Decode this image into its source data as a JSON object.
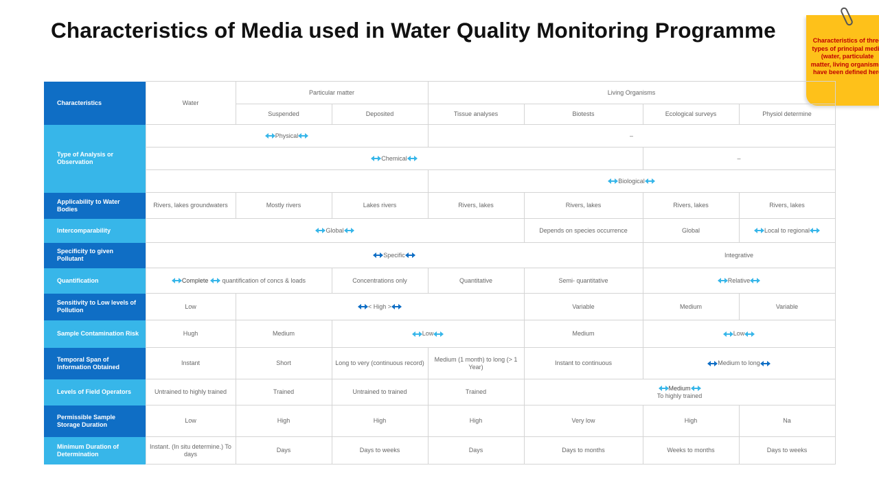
{
  "title": "Characteristics of Media used in Water Quality Monitoring Programme",
  "note": "Characteristics of three\ntypes of principal media\n(water, particulate\nmatter, living organisms)\nhave been defined here",
  "colors": {
    "dark_header": "#0f6ec5",
    "light_header": "#37b6e9",
    "arrow_light": "#37b6e9",
    "arrow_dark": "#0f6ec5",
    "note_bg": "#fec11a",
    "note_text": "#c00000"
  },
  "header": {
    "characteristics": "Characteristics",
    "water": "Water",
    "particulate": "Particular matter",
    "living": "Living Organisms",
    "suspended": "Suspended",
    "deposited": "Deposited",
    "tissue": "Tissue analyses",
    "biotests": "Biotests",
    "ecological": "Ecological surveys",
    "physiol": "Physiol determine"
  },
  "rows": {
    "analysis": {
      "label": "Type of Analysis or Observation",
      "physical": "Physical",
      "physical_dash": "–",
      "chemical": "Chemical",
      "chemical_dash": "–",
      "biological": "Biological"
    },
    "applicability": {
      "label": "Applicability to Water Bodies",
      "water": "Rivers, lakes groundwaters",
      "suspended": "Mostly rivers",
      "deposited": "Lakes rivers",
      "tissue": "Rivers, lakes",
      "biotests": "Rivers, lakes",
      "ecological": "Rivers, lakes",
      "physiol": "Rivers, lakes"
    },
    "intercomparability": {
      "label": "Intercomparability",
      "global": "Global",
      "biotests": "Depends on species occurrence",
      "ecological": "Global",
      "physiol": "Local to regional"
    },
    "specificity": {
      "label": "Specificity to given Pollutant",
      "specific": "Specific",
      "integrative": "Integrative"
    },
    "quantification": {
      "label": "Quantification",
      "complete": "Complete",
      "complete_rest": "quantification of concs & loads",
      "deposited": "Concentrations only",
      "tissue": "Quantitative",
      "biotests": "Semi- quantitative",
      "relative": "Relative"
    },
    "sensitivity": {
      "label": "Sensitivity to Low levels of Pollution",
      "water": "Low",
      "high": "< High >",
      "biotests": "Variable",
      "ecological": "Medium",
      "physiol": "Variable"
    },
    "contamination": {
      "label": "Sample Contamination Risk",
      "water": "Hugh",
      "suspended": "Medium",
      "low1": "Low",
      "biotests": "Medium",
      "low2": "Low"
    },
    "temporal": {
      "label": "Temporal Span of Information Obtained",
      "water": "Instant",
      "suspended": "Short",
      "deposited": "Long to very (continuous record)",
      "tissue": "Medium (1 month) to long (> 1 Year)",
      "biotests": "Instant to continuous",
      "medium_long": "Medium  to long"
    },
    "operators": {
      "label": "Levels of Field Operators",
      "water": "Untrained to highly trained",
      "suspended": "Trained",
      "deposited": "Untrained to trained",
      "tissue": "Trained",
      "medium": "Medium",
      "medium_rest": "To highly trained"
    },
    "storage": {
      "label": "Permissible Sample Storage Duration",
      "water": "Low",
      "suspended": "High",
      "deposited": "High",
      "tissue": "High",
      "biotests": "Very low",
      "ecological": "High",
      "physiol": "Na"
    },
    "duration": {
      "label": "Minimum Duration of Determination",
      "water": "Instant. (In situ determine.) To days",
      "suspended": "Days",
      "deposited": "Days to weeks",
      "tissue": "Days",
      "biotests": "Days to months",
      "ecological": "Weeks to months",
      "physiol": "Days to weeks"
    }
  }
}
